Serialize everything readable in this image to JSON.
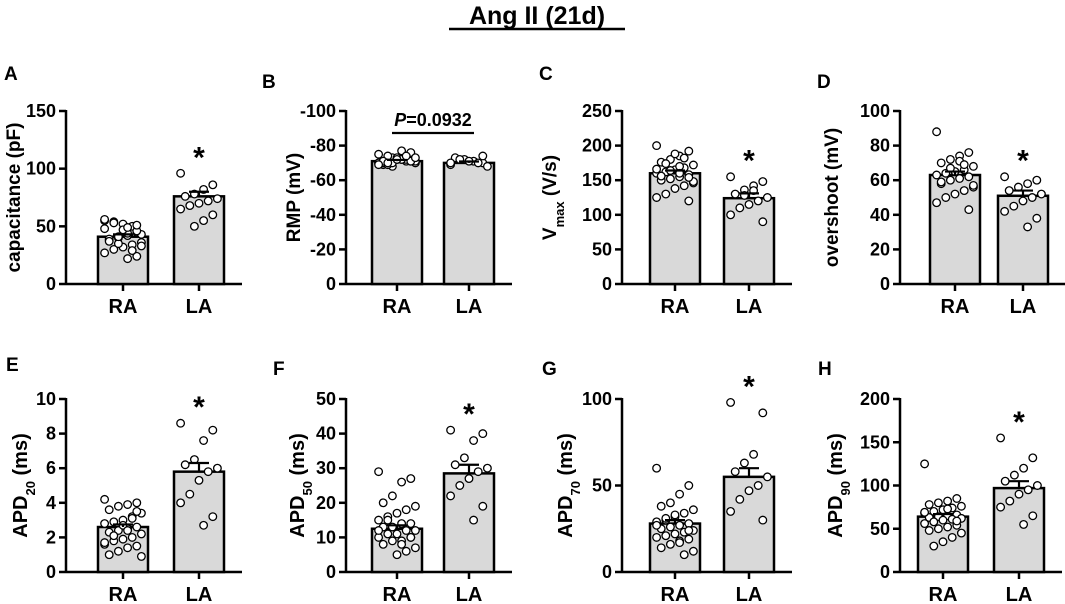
{
  "title": "Ang II (21d)",
  "colors": {
    "bar_fill": "#d9d9d9",
    "stroke": "#000000",
    "point_fill": "#ffffff"
  },
  "chart_data": [
    {
      "id": "A",
      "letter": "A",
      "type": "bar",
      "ylabel": "capacitance (pF)",
      "ylim": [
        0,
        150
      ],
      "yticks": [
        0,
        50,
        100,
        150
      ],
      "ytick_labels": [
        "0",
        "50",
        "100",
        "150"
      ],
      "categories": [
        "RA",
        "LA"
      ],
      "values": [
        41,
        76
      ],
      "sem": [
        2,
        4
      ],
      "points": [
        [
          48,
          45,
          42,
          40,
          38,
          36,
          34,
          32,
          30,
          27,
          24,
          22,
          35,
          39,
          43,
          50,
          52,
          54,
          55,
          46,
          44,
          41,
          37,
          33,
          29,
          47,
          53,
          56,
          51,
          49
        ],
        [
          96,
          86,
          82,
          78,
          76,
          74,
          72,
          70,
          68,
          65,
          60,
          55,
          50
        ]
      ],
      "significance": [
        null,
        "*"
      ],
      "annotation": null
    },
    {
      "id": "B",
      "letter": "B",
      "type": "bar",
      "ylabel": "RMP (mV)",
      "ylim": [
        0,
        -100
      ],
      "yticks": [
        0,
        -20,
        -40,
        -60,
        -80,
        -100
      ],
      "ytick_labels": [
        "0",
        "-20",
        "-40",
        "-60",
        "-80",
        "-100"
      ],
      "categories": [
        "RA",
        "LA"
      ],
      "values": [
        -71,
        -70
      ],
      "sem": [
        0.7,
        0.8
      ],
      "points": [
        [
          -70,
          -71,
          -72,
          -73,
          -69,
          -70,
          -71,
          -72,
          -74,
          -75,
          -76,
          -77,
          -68,
          -70,
          -71,
          -72,
          -73,
          -69,
          -70,
          -71,
          -72,
          -70,
          -71,
          -73,
          -74,
          -72,
          -70,
          -69
        ],
        [
          -69,
          -70,
          -71,
          -72,
          -73,
          -68,
          -70,
          -71,
          -72,
          -70,
          -74
        ]
      ],
      "significance": [
        null,
        null
      ],
      "annotation": "P=0.0932"
    },
    {
      "id": "C",
      "letter": "C",
      "type": "bar",
      "ylabel": "Vmax (V/s)",
      "ylim": [
        0,
        250
      ],
      "yticks": [
        0,
        50,
        100,
        150,
        200,
        250
      ],
      "ytick_labels": [
        "0",
        "50",
        "100",
        "150",
        "200",
        "250"
      ],
      "categories": [
        "RA",
        "LA"
      ],
      "values": [
        160,
        124
      ],
      "sem": [
        4,
        7
      ],
      "points": [
        [
          200,
          192,
          185,
          180,
          176,
          172,
          168,
          165,
          162,
          160,
          158,
          155,
          152,
          150,
          146,
          142,
          138,
          130,
          125,
          120,
          170,
          164,
          156,
          148,
          182,
          188,
          174,
          166,
          154,
          160
        ],
        [
          155,
          148,
          142,
          136,
          130,
          125,
          120,
          115,
          110,
          100,
          90,
          135,
          128
        ]
      ],
      "significance": [
        null,
        "*"
      ],
      "annotation": null
    },
    {
      "id": "D",
      "letter": "D",
      "type": "bar",
      "ylabel": "overshoot (mV)",
      "ylim": [
        0,
        100
      ],
      "yticks": [
        0,
        20,
        40,
        60,
        80,
        100
      ],
      "ytick_labels": [
        "0",
        "20",
        "40",
        "60",
        "80",
        "100"
      ],
      "categories": [
        "RA",
        "LA"
      ],
      "values": [
        63,
        51
      ],
      "sem": [
        2,
        3
      ],
      "points": [
        [
          88,
          76,
          74,
          72,
          70,
          68,
          66,
          65,
          64,
          63,
          62,
          61,
          60,
          58,
          56,
          54,
          52,
          50,
          47,
          43,
          71,
          67,
          59,
          57,
          69
        ],
        [
          62,
          60,
          58,
          56,
          54,
          52,
          50,
          48,
          45,
          42,
          38,
          33
        ]
      ],
      "significance": [
        null,
        "*"
      ],
      "annotation": null
    },
    {
      "id": "E",
      "letter": "E",
      "type": "bar",
      "ylabel": "APD20 (ms)",
      "ylim": [
        0,
        10
      ],
      "yticks": [
        0,
        2,
        4,
        6,
        8,
        10
      ],
      "ytick_labels": [
        "0",
        "2",
        "4",
        "6",
        "8",
        "10"
      ],
      "categories": [
        "RA",
        "LA"
      ],
      "values": [
        2.6,
        5.8
      ],
      "sem": [
        0.15,
        0.5
      ],
      "points": [
        [
          4.2,
          4.0,
          3.9,
          3.8,
          3.6,
          3.4,
          3.2,
          3.0,
          2.9,
          2.8,
          2.6,
          2.5,
          2.4,
          2.3,
          2.2,
          2.0,
          1.9,
          1.8,
          1.6,
          1.5,
          1.4,
          1.2,
          1.0,
          0.9,
          3.1,
          2.7,
          2.1,
          1.7,
          3.5,
          2.4
        ],
        [
          8.6,
          8.2,
          7.6,
          6.5,
          6.2,
          6.0,
          5.8,
          5.3,
          4.5,
          4.0,
          3.2,
          2.7
        ]
      ],
      "significance": [
        null,
        "*"
      ],
      "annotation": null
    },
    {
      "id": "F",
      "letter": "F",
      "type": "bar",
      "ylabel": "APD50 (ms)",
      "ylim": [
        0,
        50
      ],
      "yticks": [
        0,
        10,
        20,
        30,
        40,
        50
      ],
      "ytick_labels": [
        "0",
        "10",
        "20",
        "30",
        "40",
        "50"
      ],
      "categories": [
        "RA",
        "LA"
      ],
      "values": [
        12.5,
        28.5
      ],
      "sem": [
        1,
        2.5
      ],
      "points": [
        [
          29,
          27,
          26,
          22,
          20,
          19,
          18,
          17,
          16,
          15,
          14,
          14,
          13,
          13,
          12,
          12,
          11,
          11,
          10,
          10,
          9,
          9,
          8,
          7,
          6,
          5,
          15,
          12,
          10,
          8
        ],
        [
          41,
          40,
          38,
          33,
          31,
          30,
          29,
          27,
          25,
          22,
          19,
          15
        ]
      ],
      "significance": [
        null,
        "*"
      ],
      "annotation": null
    },
    {
      "id": "G",
      "letter": "G",
      "type": "bar",
      "ylabel": "APD70 (ms)",
      "ylim": [
        0,
        100
      ],
      "yticks": [
        0,
        50,
        100
      ],
      "ytick_labels": [
        "0",
        "50",
        "100"
      ],
      "categories": [
        "RA",
        "LA"
      ],
      "values": [
        28,
        55
      ],
      "sem": [
        2,
        5
      ],
      "points": [
        [
          60,
          50,
          45,
          40,
          38,
          36,
          34,
          32,
          30,
          29,
          28,
          27,
          26,
          25,
          24,
          23,
          22,
          21,
          20,
          19,
          18,
          16,
          14,
          12,
          10,
          33,
          31,
          27,
          24,
          17
        ],
        [
          98,
          92,
          68,
          63,
          58,
          55,
          50,
          47,
          42,
          35,
          30
        ]
      ],
      "significance": [
        null,
        "*"
      ],
      "annotation": null
    },
    {
      "id": "H",
      "letter": "H",
      "type": "bar",
      "ylabel": "APD90 (ms)",
      "ylim": [
        0,
        200
      ],
      "yticks": [
        0,
        50,
        100,
        150,
        200
      ],
      "ytick_labels": [
        "0",
        "50",
        "100",
        "150",
        "200"
      ],
      "categories": [
        "RA",
        "LA"
      ],
      "values": [
        64,
        97
      ],
      "sem": [
        3,
        8
      ],
      "points": [
        [
          125,
          85,
          82,
          80,
          78,
          76,
          74,
          72,
          70,
          68,
          66,
          65,
          64,
          63,
          62,
          61,
          60,
          58,
          56,
          54,
          52,
          50,
          48,
          45,
          40,
          35,
          30,
          69,
          59,
          73
        ],
        [
          155,
          132,
          120,
          112,
          105,
          100,
          95,
          90,
          82,
          75,
          65,
          55
        ]
      ],
      "significance": [
        null,
        "*"
      ],
      "annotation": null
    }
  ]
}
